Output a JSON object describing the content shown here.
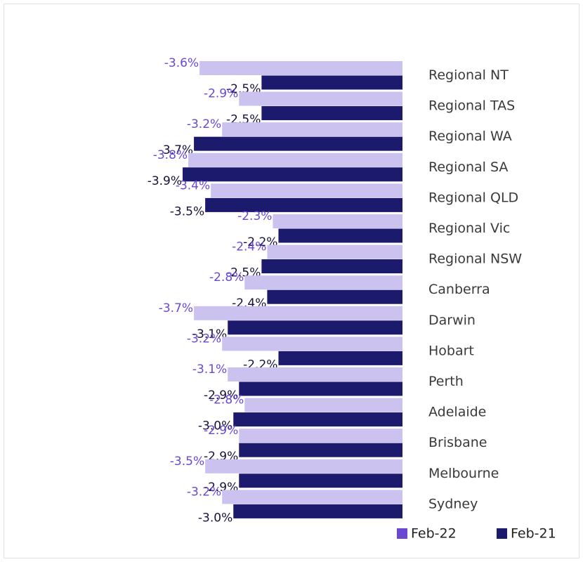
{
  "chart_data": {
    "type": "bar",
    "orientation": "horizontal",
    "categories": [
      "Regional NT",
      "Regional TAS",
      "Regional WA",
      "Regional SA",
      "Regional QLD",
      "Regional Vic",
      "Regional NSW",
      "Canberra",
      "Darwin",
      "Hobart",
      "Perth",
      "Adelaide",
      "Brisbane",
      "Melbourne",
      "Sydney"
    ],
    "series": [
      {
        "name": "Feb-22",
        "color": "#cbc2f0",
        "label_color": "#6a48d4",
        "values": [
          -3.6,
          -2.9,
          -3.2,
          -3.8,
          -3.4,
          -2.3,
          -2.4,
          -2.8,
          -3.7,
          -3.2,
          -3.1,
          -2.8,
          -2.9,
          -3.5,
          -3.2
        ],
        "value_labels": [
          "-3.6%",
          "-2.9%",
          "-3.2%",
          "-3.8%",
          "-3.4%",
          "-2.3%",
          "-2.4%",
          "-2.8%",
          "-3.7%",
          "-3.2%",
          "-3.1%",
          "-2.8%",
          "-2.9%",
          "-3.5%",
          "-3.2%"
        ]
      },
      {
        "name": "Feb-21",
        "color": "#1c1a6c",
        "label_color": "#14123a",
        "values": [
          -2.5,
          -2.5,
          -3.7,
          -3.9,
          -3.5,
          -2.2,
          -2.5,
          -2.4,
          -3.1,
          -2.2,
          -2.9,
          -3.0,
          -2.9,
          -2.9,
          -3.0
        ],
        "value_labels": [
          "-2.5%",
          "-2.5%",
          "-3.7%",
          "-3.9%",
          "-3.5%",
          "-2.2%",
          "-2.5%",
          "-2.4%",
          "-3.1%",
          "-2.2%",
          "-2.9%",
          "-3.0%",
          "-2.9%",
          "-2.9%",
          "-3.0%"
        ]
      }
    ],
    "xlim": [
      -4,
      0
    ],
    "legend": "bottom-right"
  }
}
